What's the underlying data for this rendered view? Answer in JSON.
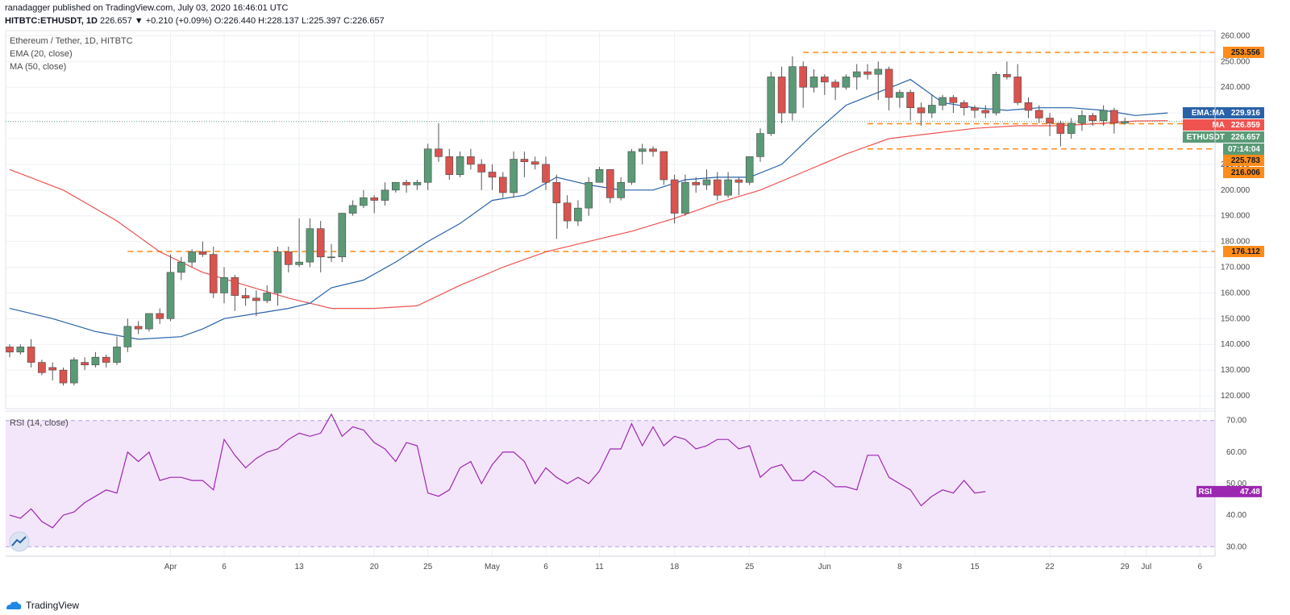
{
  "header": {
    "line1": "ranadagger published on TradingView.com, July 03, 2020 16:46:01 UTC",
    "symbol": "HITBTC:ETHUSDT, 1D",
    "ohlc": "226.657 ▼ +0.210 (+0.09%) O:226.440 H:228.137 L:225.397 C:226.657"
  },
  "legend": {
    "title": "Ethereum / Tether, 1D, HITBTC",
    "ema": "EMA (20, close)",
    "ma": "MA (50, close)",
    "rsi": "RSI (14, close)"
  },
  "colors": {
    "up": "#5b9a77",
    "down": "#d9534f",
    "ema": "#2962a8",
    "ma": "#ef5350",
    "level": "#ff8c1a",
    "rsi": "#9c27b0",
    "rsi_band": "#f3e6fb",
    "grid": "#eef0f3"
  },
  "logo": {
    "text": "TradingView",
    "icon": "tradingview-cloud-icon"
  },
  "chart_data": [
    {
      "type": "candlestick",
      "title": "Ethereum / Tether, 1D, HITBTC",
      "ylim": [
        115,
        262
      ],
      "yticks": [
        120,
        130,
        140,
        150,
        160,
        170,
        180,
        190,
        200,
        210,
        220,
        230,
        240,
        250,
        260
      ],
      "xticks": [
        {
          "index": 15,
          "label": "Apr"
        },
        {
          "index": 20,
          "label": "6"
        },
        {
          "index": 27,
          "label": "13"
        },
        {
          "index": 34,
          "label": "20"
        },
        {
          "index": 39,
          "label": "25"
        },
        {
          "index": 45,
          "label": "May"
        },
        {
          "index": 50,
          "label": "6"
        },
        {
          "index": 55,
          "label": "11"
        },
        {
          "index": 62,
          "label": "18"
        },
        {
          "index": 69,
          "label": "25"
        },
        {
          "index": 76,
          "label": "Jun"
        },
        {
          "index": 83,
          "label": "8"
        },
        {
          "index": 90,
          "label": "15"
        },
        {
          "index": 97,
          "label": "22"
        },
        {
          "index": 104,
          "label": "29"
        },
        {
          "index": 106,
          "label": "Jul"
        },
        {
          "index": 111,
          "label": "6"
        }
      ],
      "levels": [
        253.556,
        225.783,
        216.006,
        176.112
      ],
      "axis_tags": [
        {
          "label": "",
          "value": "260.000"
        },
        {
          "label": "",
          "value": "253.556"
        },
        {
          "label": "EMA:MA",
          "value": "229.916"
        },
        {
          "label": "MA",
          "value": "226.859"
        },
        {
          "label": "ETHUSDT",
          "value": "226.657"
        },
        {
          "label": "",
          "value": "07:14:04"
        },
        {
          "label": "",
          "value": "225.783"
        },
        {
          "label": "",
          "value": "216.006"
        },
        {
          "label": "",
          "value": "176.112"
        }
      ],
      "candles": [
        [
          139,
          137,
          140,
          135
        ],
        [
          137,
          139,
          140,
          136
        ],
        [
          139,
          133,
          142,
          131
        ],
        [
          133,
          129,
          134,
          128
        ],
        [
          131,
          130,
          133,
          126
        ],
        [
          130,
          125,
          131,
          124
        ],
        [
          125,
          134,
          135,
          124
        ],
        [
          133,
          132,
          135,
          130
        ],
        [
          132,
          135,
          137,
          131
        ],
        [
          135,
          133,
          136,
          131
        ],
        [
          133,
          139,
          143,
          132
        ],
        [
          139,
          147,
          150,
          137
        ],
        [
          147,
          146,
          149,
          144
        ],
        [
          146,
          152,
          152,
          145
        ],
        [
          152,
          150,
          154,
          148
        ],
        [
          150,
          168,
          175,
          149
        ],
        [
          168,
          172,
          174,
          165
        ],
        [
          172,
          176,
          177,
          170
        ],
        [
          176,
          175,
          180,
          174
        ],
        [
          175,
          160,
          178,
          158
        ],
        [
          160,
          166,
          170,
          156
        ],
        [
          166,
          159,
          167,
          153
        ],
        [
          159,
          158,
          162,
          155
        ],
        [
          158,
          157,
          161,
          151
        ],
        [
          157,
          160,
          163,
          156
        ],
        [
          160,
          176,
          178,
          155
        ],
        [
          176,
          171,
          178,
          168
        ],
        [
          171,
          172,
          189,
          170
        ],
        [
          172,
          185,
          189,
          170
        ],
        [
          185,
          174,
          188,
          168
        ],
        [
          174,
          174,
          179,
          172
        ],
        [
          174,
          191,
          191,
          172
        ],
        [
          191,
          194,
          196,
          190
        ],
        [
          194,
          197,
          200,
          193
        ],
        [
          197,
          196,
          198,
          191
        ],
        [
          196,
          200,
          203,
          194
        ],
        [
          200,
          203,
          203,
          199
        ],
        [
          203,
          202,
          204,
          199
        ],
        [
          202,
          203,
          204,
          200
        ],
        [
          203,
          216,
          218,
          200
        ],
        [
          216,
          213,
          226,
          211
        ],
        [
          213,
          206,
          216,
          204
        ],
        [
          206,
          213,
          215,
          205
        ],
        [
          213,
          210,
          216,
          208
        ],
        [
          210,
          207,
          212,
          200
        ],
        [
          207,
          205,
          210,
          200
        ],
        [
          205,
          199,
          207,
          197
        ],
        [
          199,
          212,
          215,
          197
        ],
        [
          212,
          211,
          215,
          205
        ],
        [
          211,
          210,
          213,
          208
        ],
        [
          210,
          203,
          213,
          200
        ],
        [
          203,
          195,
          206,
          181
        ],
        [
          195,
          188,
          198,
          185
        ],
        [
          188,
          193,
          196,
          186
        ],
        [
          193,
          203,
          205,
          190
        ],
        [
          203,
          208,
          209,
          203
        ],
        [
          208,
          197,
          208,
          195
        ],
        [
          197,
          203,
          205,
          196
        ],
        [
          203,
          215,
          216,
          202
        ],
        [
          215,
          216,
          218,
          210
        ],
        [
          216,
          215,
          217,
          213
        ],
        [
          215,
          204,
          215,
          202
        ],
        [
          204,
          191,
          206,
          187
        ],
        [
          191,
          203,
          206,
          190
        ],
        [
          203,
          202,
          205,
          199
        ],
        [
          202,
          204,
          208,
          200
        ],
        [
          204,
          198,
          207,
          196
        ],
        [
          198,
          204,
          207,
          197
        ],
        [
          204,
          203,
          205,
          198
        ],
        [
          203,
          213,
          213,
          202
        ],
        [
          213,
          222,
          224,
          211
        ],
        [
          222,
          244,
          246,
          221
        ],
        [
          244,
          230,
          248,
          226
        ],
        [
          230,
          248,
          252,
          227
        ],
        [
          248,
          240,
          250,
          232
        ],
        [
          240,
          244,
          247,
          238
        ],
        [
          244,
          242,
          245,
          237
        ],
        [
          242,
          240,
          243,
          235
        ],
        [
          240,
          244,
          245,
          239
        ],
        [
          244,
          246,
          249,
          239
        ],
        [
          246,
          245,
          249,
          243
        ],
        [
          245,
          247,
          250,
          235
        ],
        [
          247,
          236,
          248,
          231
        ],
        [
          236,
          238,
          239,
          232
        ],
        [
          238,
          232,
          239,
          227
        ],
        [
          232,
          230,
          234,
          225
        ],
        [
          230,
          233,
          237,
          228
        ],
        [
          233,
          236,
          237,
          231
        ],
        [
          236,
          234,
          237,
          230
        ],
        [
          234,
          232,
          235,
          229
        ],
        [
          232,
          231,
          233,
          228
        ],
        [
          231,
          230,
          233,
          228
        ],
        [
          230,
          245,
          246,
          229
        ],
        [
          245,
          244,
          250,
          243
        ],
        [
          244,
          234,
          249,
          233
        ],
        [
          234,
          231,
          236,
          228
        ],
        [
          231,
          228,
          233,
          226
        ],
        [
          228,
          226,
          230,
          221
        ],
        [
          226,
          222,
          227,
          217
        ],
        [
          222,
          226,
          228,
          220
        ],
        [
          226,
          229,
          231,
          223
        ],
        [
          229,
          227,
          230,
          225
        ],
        [
          227,
          231,
          233,
          225
        ],
        [
          231,
          226,
          232,
          222
        ],
        [
          226,
          226.657,
          228.137,
          225.397
        ]
      ],
      "ema20": [
        [
          0,
          154
        ],
        [
          4,
          150
        ],
        [
          8,
          145
        ],
        [
          12,
          142
        ],
        [
          16,
          143
        ],
        [
          18,
          146
        ],
        [
          20,
          150
        ],
        [
          23,
          152
        ],
        [
          26,
          154
        ],
        [
          28,
          156
        ],
        [
          30,
          162
        ],
        [
          33,
          165
        ],
        [
          36,
          172
        ],
        [
          39,
          180
        ],
        [
          42,
          187
        ],
        [
          45,
          196
        ],
        [
          48,
          198
        ],
        [
          51,
          205
        ],
        [
          54,
          202
        ],
        [
          57,
          200
        ],
        [
          60,
          200
        ],
        [
          63,
          204
        ],
        [
          66,
          205
        ],
        [
          69,
          205
        ],
        [
          72,
          210
        ],
        [
          75,
          222
        ],
        [
          78,
          233
        ],
        [
          81,
          238
        ],
        [
          84,
          243
        ],
        [
          87,
          234
        ],
        [
          90,
          232
        ],
        [
          93,
          231
        ],
        [
          96,
          232
        ],
        [
          99,
          232
        ],
        [
          102,
          231
        ],
        [
          105,
          229
        ],
        [
          108,
          230
        ]
      ],
      "ma50": [
        [
          0,
          208
        ],
        [
          5,
          200
        ],
        [
          10,
          188
        ],
        [
          14,
          176
        ],
        [
          18,
          168
        ],
        [
          22,
          163
        ],
        [
          26,
          158
        ],
        [
          30,
          154
        ],
        [
          34,
          154
        ],
        [
          38,
          155
        ],
        [
          42,
          163
        ],
        [
          46,
          170
        ],
        [
          50,
          176
        ],
        [
          54,
          180
        ],
        [
          58,
          184
        ],
        [
          62,
          189
        ],
        [
          66,
          195
        ],
        [
          70,
          200
        ],
        [
          74,
          207
        ],
        [
          78,
          214
        ],
        [
          82,
          220
        ],
        [
          86,
          222
        ],
        [
          90,
          224
        ],
        [
          94,
          225
        ],
        [
          98,
          225
        ],
        [
          102,
          226
        ],
        [
          105,
          226.859
        ],
        [
          108,
          227
        ]
      ]
    },
    {
      "type": "line",
      "title": "RSI (14, close)",
      "ylim": [
        27,
        73
      ],
      "yticks": [
        30,
        40,
        50,
        60,
        70
      ],
      "bands": [
        30,
        70
      ],
      "current": {
        "label": "RSI",
        "value": "47.48"
      },
      "values": [
        40,
        39,
        42,
        38,
        36,
        40,
        41,
        44,
        46,
        48,
        47,
        60,
        57,
        60,
        51,
        52,
        52,
        51,
        51,
        48,
        64,
        59,
        55,
        58,
        60,
        61,
        64,
        66,
        65,
        66,
        72,
        65,
        68,
        67,
        63,
        61,
        57,
        63,
        62,
        47,
        46,
        48,
        55,
        57,
        50,
        56,
        60,
        60,
        57,
        50,
        55,
        52,
        50,
        52,
        50,
        54,
        61,
        61,
        69,
        62,
        68,
        62,
        65,
        64,
        61,
        62,
        64,
        64,
        61,
        62,
        52,
        55,
        56,
        51,
        51,
        54,
        52,
        49,
        49,
        48,
        59,
        59,
        52,
        50,
        48,
        43,
        46,
        48,
        47,
        51,
        47,
        47.48
      ]
    }
  ]
}
